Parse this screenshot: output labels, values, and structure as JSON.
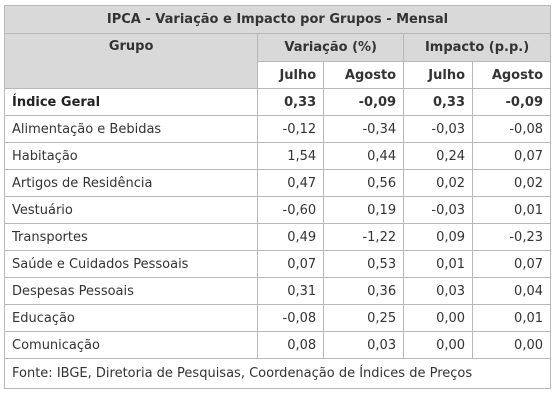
{
  "table": {
    "title": "IPCA - Variação e Impacto por Grupos - Mensal",
    "headers": {
      "group": "Grupo",
      "variation": "Variação (%)",
      "impact": "Impacto (p.p.)",
      "months": [
        "Julho",
        "Agosto",
        "Julho",
        "Agosto"
      ]
    },
    "rows": [
      {
        "name": "Índice Geral",
        "values": [
          "0,33",
          "-0,09",
          "0,33",
          "-0,09"
        ],
        "bold": true
      },
      {
        "name": "Alimentação e Bebidas",
        "values": [
          "-0,12",
          "-0,34",
          "-0,03",
          "-0,08"
        ]
      },
      {
        "name": "Habitação",
        "values": [
          "1,54",
          "0,44",
          "0,24",
          "0,07"
        ]
      },
      {
        "name": "Artigos de Residência",
        "values": [
          "0,47",
          "0,56",
          "0,02",
          "0,02"
        ]
      },
      {
        "name": "Vestuário",
        "values": [
          "-0,60",
          "0,19",
          "-0,03",
          "0,01"
        ]
      },
      {
        "name": "Transportes",
        "values": [
          "0,49",
          "-1,22",
          "0,09",
          "-0,23"
        ]
      },
      {
        "name": "Saúde e Cuidados Pessoais",
        "values": [
          "0,07",
          "0,53",
          "0,01",
          "0,07"
        ]
      },
      {
        "name": "Despesas Pessoais",
        "values": [
          "0,31",
          "0,36",
          "0,03",
          "0,04"
        ]
      },
      {
        "name": "Educação",
        "values": [
          "-0,08",
          "0,25",
          "0,00",
          "0,01"
        ]
      },
      {
        "name": "Comunicação",
        "values": [
          "0,08",
          "0,03",
          "0,00",
          "0,00"
        ]
      }
    ],
    "footer": "Fonte: IBGE, Diretoria de Pesquisas, Coordenação de Índices de Preços"
  }
}
